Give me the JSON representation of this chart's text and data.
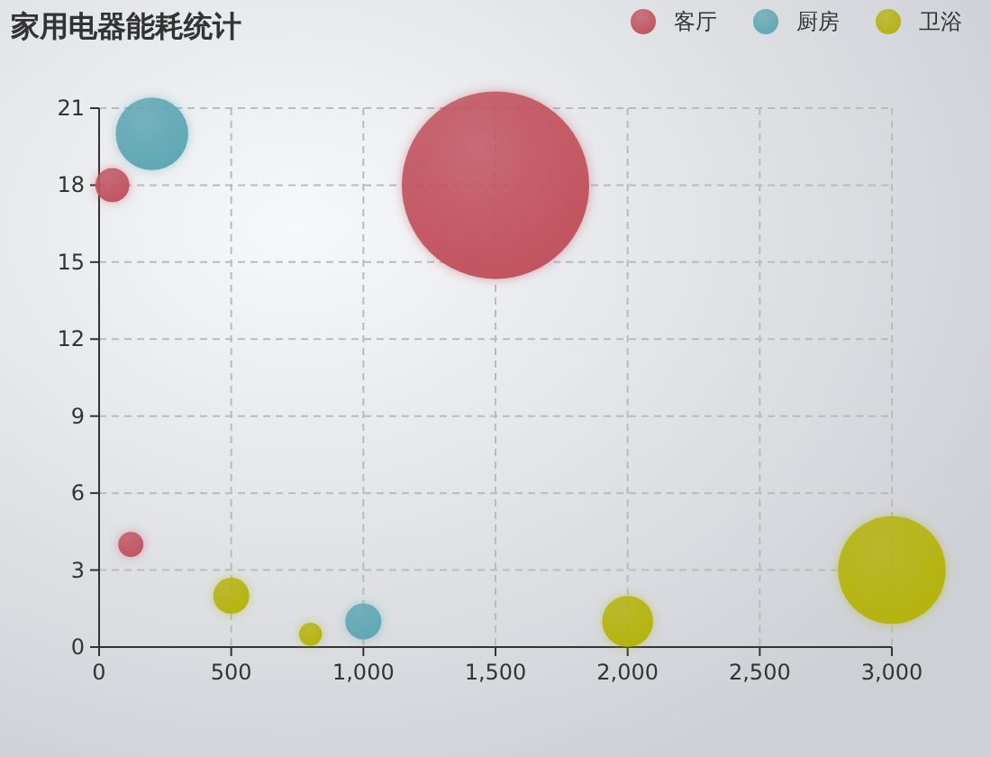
{
  "chart_data": {
    "type": "bubble",
    "title": "家用电器能耗统计",
    "series": [
      {
        "name": "客厅",
        "color": "#c1535f",
        "x": [
          50,
          120,
          1500
        ],
        "values": [
          18,
          4,
          18
        ],
        "sizes": [
          0.033,
          0.018,
          1
        ]
      },
      {
        "name": "厨房",
        "color": "#5fa7b4",
        "x": [
          200,
          1000
        ],
        "values": [
          20,
          1
        ],
        "sizes": [
          0.15,
          0.037
        ]
      },
      {
        "name": "卫浴",
        "color": "#b5b30f",
        "x": [
          500,
          800,
          2000,
          3000
        ],
        "values": [
          2,
          0.5,
          1,
          3
        ],
        "sizes": [
          0.037,
          0.015,
          0.074,
          0.33
        ]
      }
    ],
    "xlim": [
      0,
      3000
    ],
    "xticks": [
      0,
      500,
      {
        "value": 1000,
        "label": "1,000"
      },
      {
        "value": 1500,
        "label": "1,500"
      },
      {
        "value": 2000,
        "label": "2,000"
      },
      {
        "value": 2500,
        "label": "2,500"
      },
      {
        "value": 3000,
        "label": "3,000"
      }
    ],
    "ylim": [
      0,
      21
    ],
    "yticks": [
      0,
      3,
      6,
      9,
      12,
      15,
      18,
      21
    ],
    "grid": true,
    "legend": "top right"
  }
}
